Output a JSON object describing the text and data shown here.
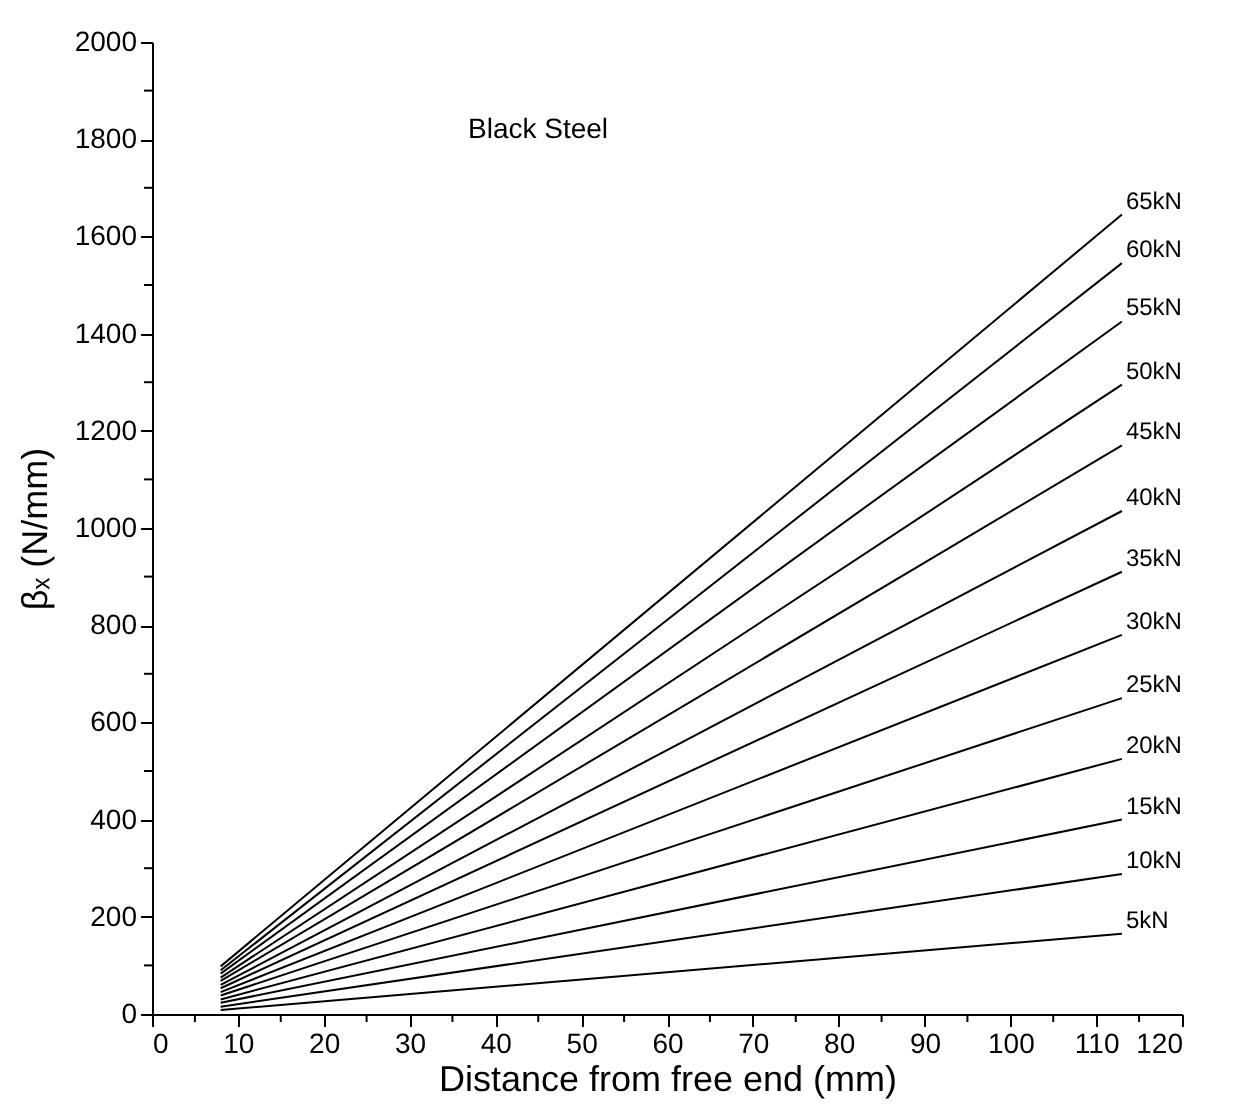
{
  "chart_data": {
    "type": "line",
    "xlabel": "Distance from free end (mm)",
    "ylabel": "βₓ (N/mm)",
    "annotations": [
      "Black Steel"
    ],
    "x": [
      8,
      113
    ],
    "xlim": [
      0,
      120
    ],
    "ylim": [
      0,
      2000
    ],
    "xticks": [
      0,
      {
        "value": 5,
        "label": null
      },
      10,
      {
        "value": 15,
        "label": null
      },
      20,
      {
        "value": 25,
        "label": null
      },
      30,
      {
        "value": 35,
        "label": null
      },
      40,
      {
        "value": 45,
        "label": null
      },
      50,
      {
        "value": 55,
        "label": null
      },
      60,
      {
        "value": 65,
        "label": null
      },
      70,
      {
        "value": 75,
        "label": null
      },
      80,
      {
        "value": 85,
        "label": null
      },
      90,
      {
        "value": 95,
        "label": null
      },
      100,
      {
        "value": 105,
        "label": null
      },
      110,
      {
        "value": 115,
        "label": null
      },
      120
    ],
    "yticks": [
      0,
      {
        "value": 100,
        "label": null
      },
      200,
      {
        "value": 300,
        "label": null
      },
      400,
      {
        "value": 500,
        "label": null
      },
      600,
      {
        "value": 700,
        "label": null
      },
      800,
      {
        "value": 900,
        "label": null
      },
      1000,
      {
        "value": 1100,
        "label": null
      },
      1200,
      {
        "value": 1300,
        "label": null
      },
      1400,
      {
        "value": 1500,
        "label": null
      },
      1600,
      {
        "value": 1700,
        "label": null
      },
      1800,
      {
        "value": 1900,
        "label": null
      },
      2000
    ],
    "grid": false,
    "legend": false,
    "marker": "none",
    "line_style": "solid",
    "series": [
      {
        "name": "65kN",
        "color": "#000000",
        "values": [
          98,
          1645
        ]
      },
      {
        "name": "60kN",
        "color": "#000000",
        "values": [
          90,
          1545
        ]
      },
      {
        "name": "55kN",
        "color": "#000000",
        "values": [
          83,
          1425
        ]
      },
      {
        "name": "50kN",
        "color": "#000000",
        "values": [
          75,
          1295
        ]
      },
      {
        "name": "45kN",
        "color": "#000000",
        "values": [
          68,
          1170
        ]
      },
      {
        "name": "40kN",
        "color": "#000000",
        "values": [
          60,
          1035
        ]
      },
      {
        "name": "35kN",
        "color": "#000000",
        "values": [
          53,
          910
        ]
      },
      {
        "name": "30kN",
        "color": "#000000",
        "values": [
          45,
          780
        ]
      },
      {
        "name": "25kN",
        "color": "#000000",
        "values": [
          38,
          650
        ]
      },
      {
        "name": "20kN",
        "color": "#000000",
        "values": [
          30,
          525
        ]
      },
      {
        "name": "15kN",
        "color": "#000000",
        "values": [
          23,
          400
        ]
      },
      {
        "name": "10kN",
        "color": "#000000",
        "values": [
          15,
          288
        ]
      },
      {
        "name": "5kN",
        "color": "#000000",
        "values": [
          8,
          165
        ]
      }
    ]
  }
}
